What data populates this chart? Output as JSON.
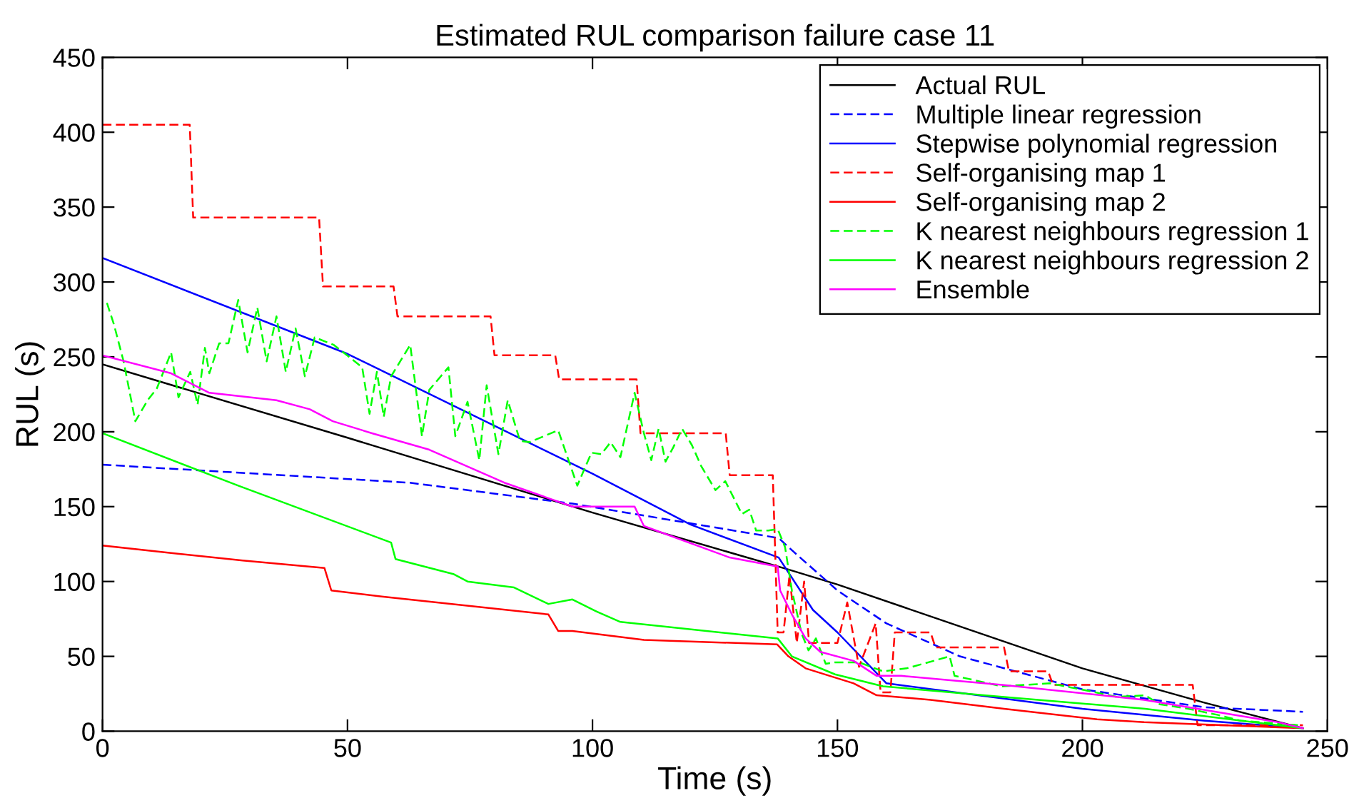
{
  "chart_data": {
    "type": "line",
    "title": "Estimated RUL comparison failure case 11",
    "xlabel": "Time (s)",
    "ylabel": "RUL (s)",
    "xlim": [
      0,
      250
    ],
    "xticks": [
      0,
      50,
      100,
      150,
      200,
      250
    ],
    "ylim": [
      0,
      450
    ],
    "yticks": [
      0,
      50,
      100,
      150,
      200,
      250,
      300,
      350,
      400,
      450
    ],
    "grid": false,
    "legend": "top right",
    "series": [
      {
        "name": "Actual RUL",
        "color": "#000000",
        "line_style": "solid",
        "x": [
          0,
          50,
          100,
          140,
          150,
          175,
          200,
          225,
          245
        ],
        "values": [
          245,
          196,
          146,
          108,
          98,
          70,
          42,
          19,
          2
        ]
      },
      {
        "name": "Multiple linear regression",
        "color": "#0000ff",
        "line_style": "dashed",
        "x": [
          0,
          62.6,
          95.9,
          138,
          141,
          150,
          160,
          175,
          200,
          225,
          245
        ],
        "values": [
          178,
          166,
          152,
          129,
          120,
          94,
          72,
          50,
          28,
          16,
          13
        ]
      },
      {
        "name": "Stepwise polynomial regression",
        "color": "#0000ff",
        "line_style": "solid",
        "x": [
          0,
          50,
          100,
          120,
          138,
          145,
          150,
          160,
          200,
          225,
          245
        ],
        "values": [
          316,
          252,
          172,
          138,
          116,
          81,
          66,
          32,
          15,
          7,
          2
        ]
      },
      {
        "name": "Self-organising map 1",
        "color": "#ff0000",
        "line_style": "dashed",
        "x": [
          0,
          17.8,
          18.5,
          44.2,
          45,
          59.4,
          60.2,
          79.2,
          80,
          92.4,
          93.2,
          109,
          109.8,
          127.2,
          128,
          136.8,
          137.8,
          139,
          140.2,
          141.7,
          143.2,
          144.2,
          150,
          152,
          154.4,
          157.8,
          158.8,
          160.8,
          161.7,
          169,
          170,
          184,
          185,
          193,
          194,
          222.5,
          223.5,
          245
        ],
        "values": [
          405,
          405,
          343,
          343,
          297,
          297,
          277,
          277,
          251,
          251,
          235,
          235,
          199,
          199,
          171,
          171,
          66,
          66,
          104,
          59,
          100,
          59,
          59,
          86,
          43,
          72,
          26,
          26,
          66,
          66,
          56,
          56,
          40,
          40,
          31,
          31,
          4,
          4
        ]
      },
      {
        "name": "Self-organising map 2",
        "color": "#ff0000",
        "line_style": "solid",
        "x": [
          0,
          14,
          28.6,
          45.3,
          46.7,
          57,
          91,
          93,
          95.9,
          110.5,
          137.7,
          140,
          143.5,
          153.3,
          158,
          169,
          184,
          203,
          212.6,
          245
        ],
        "values": [
          124,
          119,
          114,
          109,
          94,
          90,
          78,
          67,
          67,
          61,
          58,
          50,
          42,
          32,
          24,
          21,
          15,
          8,
          6,
          2
        ]
      },
      {
        "name": "K nearest neighbours regression 1",
        "color": "#00ff00",
        "line_style": "dashed",
        "x": [
          0.9,
          2.3,
          4.3,
          6.7,
          9.2,
          11.1,
          14.0,
          15.5,
          17.9,
          19.4,
          20.9,
          21.8,
          23.8,
          25.7,
          27.7,
          29.6,
          31.6,
          33.5,
          35.5,
          37.4,
          39.4,
          41.3,
          43.3,
          47.2,
          51.1,
          53.0,
          54.5,
          56.0,
          57.4,
          58.9,
          62.8,
          65.2,
          66.7,
          70.6,
          72.0,
          74.5,
          76.9,
          78.4,
          80.8,
          82.7,
          85.2,
          87.1,
          93.0,
          96.9,
          99.8,
          101.8,
          103.7,
          105.7,
          108.6,
          110.5,
          112.0,
          113.5,
          114.9,
          116.4,
          118.3,
          120.3,
          122.2,
          125.1,
          127.1,
          130.5,
          132.0,
          133.4,
          135.9,
          137.8,
          139.3,
          140.7,
          142.7,
          144.1,
          145.6,
          147.6,
          149.5,
          154.4,
          159.3,
          164.1,
          172.9,
          173.9,
          183.6,
          193.4,
          201.1,
          207,
          212.8,
          215.8,
          221.6,
          227.5,
          232.3,
          244
        ],
        "values": [
          286,
          272,
          247,
          207,
          221,
          229,
          253,
          223,
          240,
          218,
          256,
          239,
          259,
          259,
          288,
          253,
          283,
          247,
          277,
          240,
          269,
          237,
          263,
          258,
          248,
          243,
          212,
          240,
          210,
          237,
          258,
          197,
          228,
          243,
          197,
          220,
          181,
          231,
          185,
          221,
          194,
          193,
          201,
          164,
          186,
          185,
          193,
          183,
          226,
          199,
          181,
          202,
          180,
          189,
          202,
          191,
          177,
          161,
          167,
          145,
          148,
          134,
          134,
          135,
          123,
          94,
          65,
          54,
          62,
          45,
          46,
          46,
          40,
          42,
          50,
          37,
          30,
          32,
          27,
          23,
          24,
          18,
          15,
          11,
          7,
          4
        ]
      },
      {
        "name": "K nearest neighbours regression 2",
        "color": "#00ff00",
        "line_style": "solid",
        "x": [
          0,
          27.7,
          58.9,
          59.8,
          71.6,
          74.5,
          84,
          91,
          95.9,
          100.8,
          105.7,
          137.8,
          140.7,
          149.5,
          159.3,
          183.6,
          212.8,
          245
        ],
        "values": [
          199,
          164,
          126,
          115,
          105,
          100,
          96,
          85,
          88,
          80,
          73,
          62,
          50,
          38,
          30,
          23,
          15,
          2
        ]
      },
      {
        "name": "Ensemble",
        "color": "#ff00ff",
        "line_style": "solid",
        "x": [
          0,
          14,
          21.8,
          35.5,
          42.3,
          47,
          55,
          66.7,
          82,
          95.9,
          108.6,
          110.5,
          128,
          137.8,
          138.3,
          140.7,
          143.5,
          146.5,
          153.3,
          158,
          163,
          183.6,
          212.6,
          240,
          245
        ],
        "values": [
          251,
          239,
          226,
          221,
          215,
          207,
          199,
          188,
          166,
          150,
          150,
          137,
          116,
          110,
          94,
          78,
          62,
          53,
          47,
          37,
          37,
          31,
          21,
          6,
          2
        ]
      }
    ]
  }
}
